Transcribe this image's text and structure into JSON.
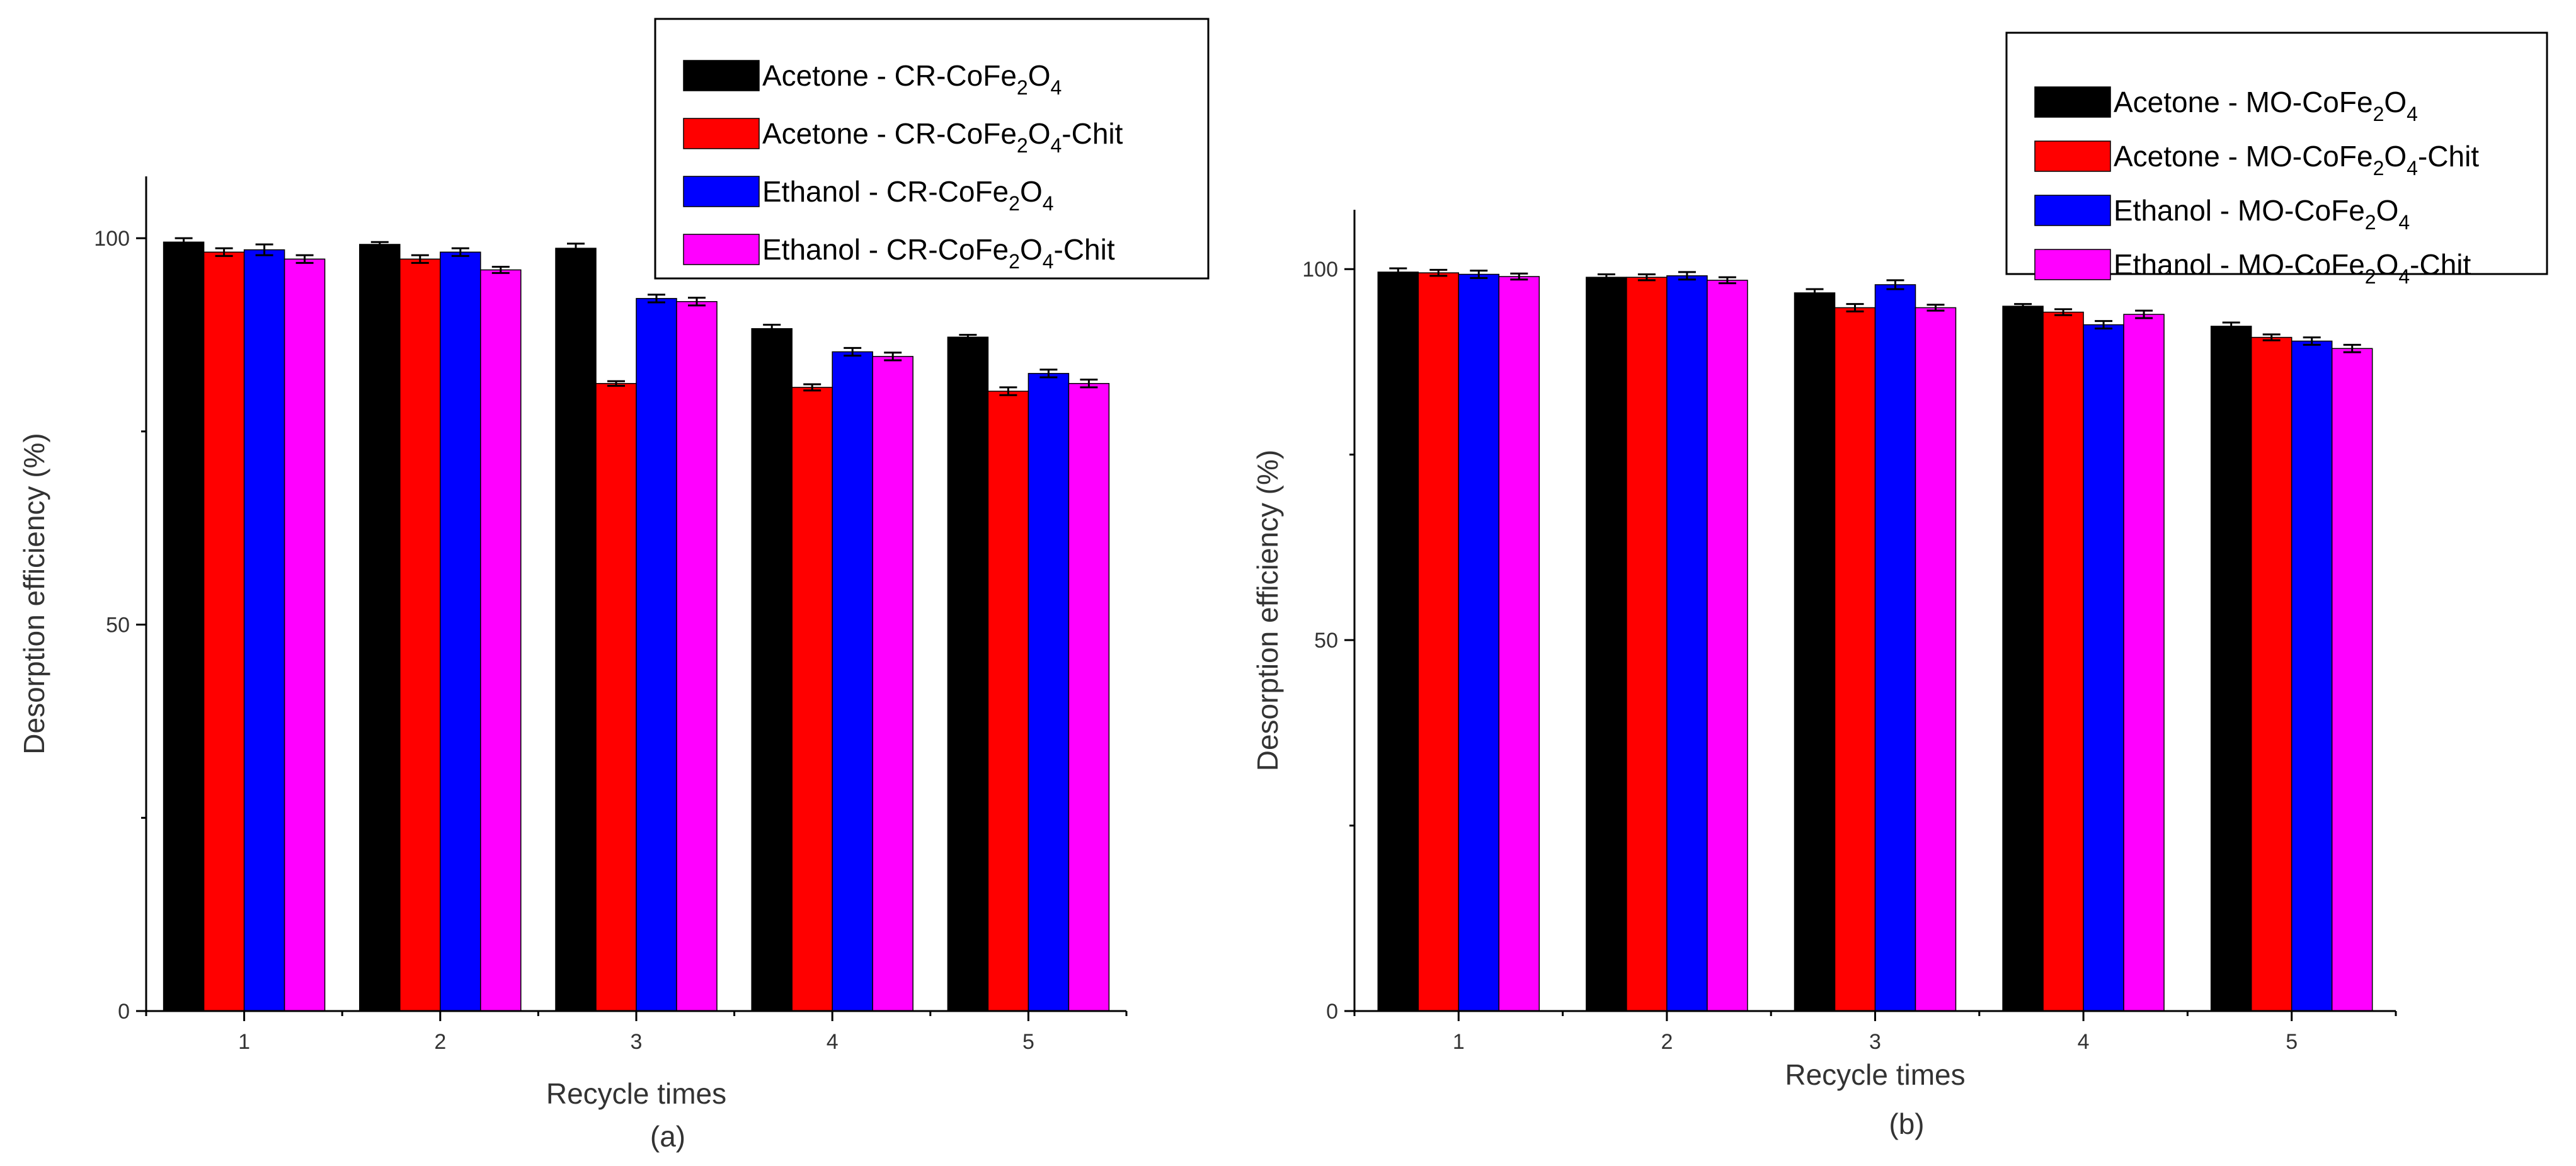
{
  "chart_data": [
    {
      "id": "a",
      "type": "bar",
      "panel_label": "(a)",
      "xlabel": "Recycle times",
      "ylabel": "Desorption efficiency (%)",
      "ylim": [
        0,
        108
      ],
      "yticks": [
        0,
        50,
        100
      ],
      "categories": [
        "1",
        "2",
        "3",
        "4",
        "5"
      ],
      "legend_position": "top-right",
      "series": [
        {
          "name": "Acetone - CR-CoFe2O4",
          "legend": {
            "pre": "Acetone - CR-CoFe",
            "s1": "2",
            "mid": "O",
            "s2": "4",
            "post": ""
          },
          "color": "#000000",
          "values": [
            99.5,
            99.2,
            98.7,
            88.3,
            87.2
          ],
          "errors": [
            0.5,
            0.3,
            0.6,
            0.5,
            0.3
          ]
        },
        {
          "name": "Acetone - CR-CoFe2O4-Chit",
          "legend": {
            "pre": "Acetone - CR-CoFe",
            "s1": "2",
            "mid": "O",
            "s2": "4",
            "post": "-Chit"
          },
          "color": "#ff0000",
          "values": [
            98.2,
            97.3,
            81.2,
            80.7,
            80.2
          ],
          "errors": [
            0.5,
            0.5,
            0.3,
            0.4,
            0.5
          ]
        },
        {
          "name": "Ethanol - CR-CoFe2O4",
          "legend": {
            "pre": "Ethanol - CR-CoFe",
            "s1": "2",
            "mid": "O",
            "s2": "4",
            "post": ""
          },
          "color": "#0000ff",
          "values": [
            98.5,
            98.2,
            92.2,
            85.3,
            82.5
          ],
          "errors": [
            0.7,
            0.5,
            0.5,
            0.5,
            0.5
          ]
        },
        {
          "name": "Ethanol - CR-CoFe2O4-Chit",
          "legend": {
            "pre": "Ethanol - CR-CoFe",
            "s1": "2",
            "mid": "O",
            "s2": "4",
            "post": "-Chit"
          },
          "color": "#ff00ff",
          "values": [
            97.3,
            95.9,
            91.8,
            84.7,
            81.2
          ],
          "errors": [
            0.5,
            0.4,
            0.5,
            0.5,
            0.5
          ]
        }
      ]
    },
    {
      "id": "b",
      "type": "bar",
      "panel_label": "(b)",
      "xlabel": "Recycle times",
      "ylabel": "Desorption efficiency (%)",
      "ylim": [
        0,
        108
      ],
      "yticks": [
        0,
        50,
        100
      ],
      "categories": [
        "1",
        "2",
        "3",
        "4",
        "5"
      ],
      "legend_position": "top-right",
      "series": [
        {
          "name": "Acetone - MO-CoFe2O4",
          "legend": {
            "pre": "Acetone - MO-CoFe",
            "s1": "2",
            "mid": "O",
            "s2": "4",
            "post": ""
          },
          "color": "#000000",
          "values": [
            99.6,
            98.9,
            96.8,
            95.0,
            92.3
          ],
          "errors": [
            0.5,
            0.4,
            0.5,
            0.3,
            0.5
          ]
        },
        {
          "name": "Acetone - MO-CoFe2O4-Chit",
          "legend": {
            "pre": "Acetone - MO-CoFe",
            "s1": "2",
            "mid": "O",
            "s2": "4",
            "post": "-Chit"
          },
          "color": "#ff0000",
          "values": [
            99.5,
            98.9,
            94.8,
            94.2,
            90.8
          ],
          "errors": [
            0.4,
            0.4,
            0.5,
            0.4,
            0.4
          ]
        },
        {
          "name": "Ethanol - MO-CoFe2O4",
          "legend": {
            "pre": "Ethanol - MO-CoFe",
            "s1": "2",
            "mid": "O",
            "s2": "4",
            "post": ""
          },
          "color": "#0000ff",
          "values": [
            99.3,
            99.1,
            97.9,
            92.5,
            90.3
          ],
          "errors": [
            0.5,
            0.5,
            0.6,
            0.5,
            0.5
          ]
        },
        {
          "name": "Ethanol - MO-CoFe2O4-Chit",
          "legend": {
            "pre": "Ethanol - MO-CoFe",
            "s1": "2",
            "mid": "O",
            "s2": "4",
            "post": "-Chit"
          },
          "color": "#ff00ff",
          "values": [
            99.0,
            98.5,
            94.8,
            93.9,
            89.3
          ],
          "errors": [
            0.4,
            0.4,
            0.4,
            0.5,
            0.5
          ]
        }
      ]
    }
  ]
}
